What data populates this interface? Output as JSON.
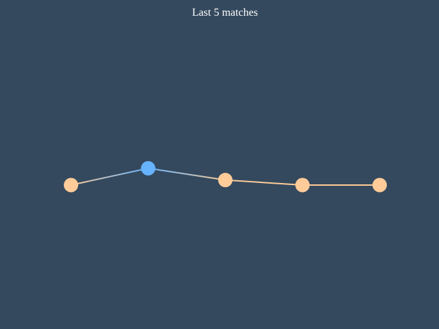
{
  "chart_data": {
    "type": "line",
    "title": "Last 5 matches",
    "xlabel": "",
    "ylabel": "",
    "x": [
      1,
      2,
      3,
      4,
      5
    ],
    "series": [
      {
        "values": [
          0,
          1,
          0.3,
          0,
          0
        ]
      }
    ],
    "ylim": [
      -4.5,
      4.5
    ],
    "point_results": [
      "loss",
      "win",
      "loss",
      "loss",
      "loss"
    ],
    "grid": false,
    "legend": "none"
  },
  "colors": {
    "background": "#34495e",
    "win": "#66b3ff",
    "loss": "#ffcc99",
    "title": "#ffffff"
  }
}
